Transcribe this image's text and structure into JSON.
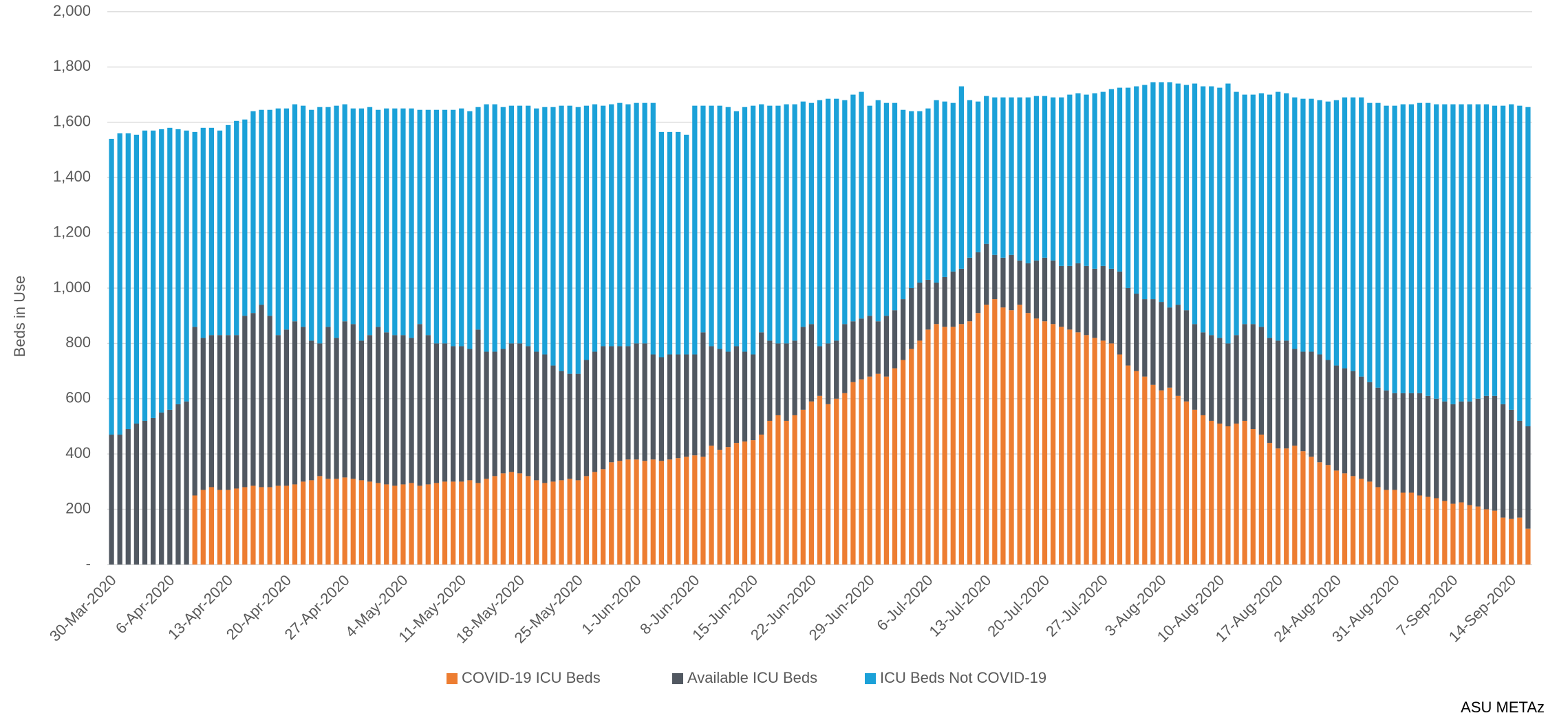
{
  "chart_data": {
    "type": "stacked_bar",
    "y_label": "Beds in Use",
    "source": "ASU METAz",
    "ylim": [
      0,
      2000
    ],
    "yticks": [
      {
        "value": 0,
        "label": "-"
      },
      200,
      400,
      600,
      800,
      {
        "value": 1000,
        "label": "1,000"
      },
      {
        "value": 1200,
        "label": "1,200"
      },
      {
        "value": 1400,
        "label": "1,400"
      },
      {
        "value": 1600,
        "label": "1,600"
      },
      {
        "value": 1800,
        "label": "1,800"
      },
      {
        "value": 2000,
        "label": "2,000"
      }
    ],
    "grid": true,
    "legend": "bottom",
    "categories": [
      "30-Mar-2020",
      null,
      null,
      null,
      null,
      null,
      null,
      "6-Apr-2020",
      null,
      null,
      null,
      null,
      null,
      null,
      "13-Apr-2020",
      null,
      null,
      null,
      null,
      null,
      null,
      "20-Apr-2020",
      null,
      null,
      null,
      null,
      null,
      null,
      "27-Apr-2020",
      null,
      null,
      null,
      null,
      null,
      null,
      "4-May-2020",
      null,
      null,
      null,
      null,
      null,
      null,
      "11-May-2020",
      null,
      null,
      null,
      null,
      null,
      null,
      "18-May-2020",
      null,
      null,
      null,
      null,
      null,
      null,
      "25-May-2020",
      null,
      null,
      null,
      null,
      null,
      null,
      "1-Jun-2020",
      null,
      null,
      null,
      null,
      null,
      null,
      "8-Jun-2020",
      null,
      null,
      null,
      null,
      null,
      null,
      "15-Jun-2020",
      null,
      null,
      null,
      null,
      null,
      null,
      "22-Jun-2020",
      null,
      null,
      null,
      null,
      null,
      null,
      "29-Jun-2020",
      null,
      null,
      null,
      null,
      null,
      null,
      "6-Jul-2020",
      null,
      null,
      null,
      null,
      null,
      null,
      "13-Jul-2020",
      null,
      null,
      null,
      null,
      null,
      null,
      "20-Jul-2020",
      null,
      null,
      null,
      null,
      null,
      null,
      "27-Jul-2020",
      null,
      null,
      null,
      null,
      null,
      null,
      "3-Aug-2020",
      null,
      null,
      null,
      null,
      null,
      null,
      "10-Aug-2020",
      null,
      null,
      null,
      null,
      null,
      null,
      "17-Aug-2020",
      null,
      null,
      null,
      null,
      null,
      null,
      "24-Aug-2020",
      null,
      null,
      null,
      null,
      null,
      null,
      "31-Aug-2020",
      null,
      null,
      null,
      null,
      null,
      null,
      "7-Sep-2020",
      null,
      null,
      null,
      null,
      null,
      null,
      "14-Sep-2020",
      null,
      null
    ],
    "series": [
      {
        "name": "COVID-19 ICU Beds",
        "color": "#ED7D31",
        "values": [
          null,
          null,
          null,
          null,
          null,
          null,
          null,
          null,
          null,
          null,
          250,
          270,
          280,
          270,
          270,
          275,
          280,
          285,
          280,
          280,
          285,
          285,
          290,
          300,
          305,
          320,
          310,
          310,
          315,
          310,
          305,
          300,
          295,
          290,
          285,
          290,
          295,
          285,
          290,
          295,
          300,
          300,
          300,
          305,
          295,
          310,
          320,
          330,
          335,
          330,
          320,
          305,
          295,
          300,
          305,
          310,
          305,
          320,
          335,
          345,
          370,
          375,
          380,
          380,
          375,
          380,
          375,
          380,
          385,
          390,
          395,
          390,
          430,
          415,
          425,
          440,
          445,
          450,
          470,
          520,
          540,
          520,
          540,
          560,
          590,
          610,
          580,
          600,
          620,
          660,
          670,
          680,
          690,
          680,
          710,
          740,
          780,
          810,
          850,
          870,
          860,
          860,
          870,
          880,
          910,
          940,
          960,
          930,
          920,
          940,
          910,
          890,
          880,
          870,
          860,
          850,
          840,
          830,
          820,
          810,
          800,
          760,
          720,
          700,
          680,
          650,
          630,
          640,
          610,
          590,
          560,
          540,
          520,
          510,
          500,
          510,
          520,
          490,
          470,
          440,
          420,
          420,
          430,
          410,
          390,
          370,
          360,
          340,
          330,
          320,
          310,
          300,
          280,
          270,
          270,
          260,
          260,
          250,
          245,
          240,
          230,
          220,
          225,
          215,
          210,
          200,
          195,
          170,
          165,
          170,
          130
        ]
      },
      {
        "name": "Available ICU Beds",
        "color": "#515861",
        "values": [
          470,
          470,
          490,
          510,
          520,
          530,
          550,
          560,
          580,
          590,
          610,
          550,
          550,
          560,
          560,
          555,
          620,
          625,
          660,
          620,
          545,
          565,
          590,
          560,
          505,
          480,
          550,
          510,
          565,
          560,
          505,
          530,
          565,
          550,
          545,
          540,
          525,
          585,
          540,
          505,
          500,
          490,
          490,
          475,
          555,
          460,
          450,
          450,
          465,
          470,
          470,
          465,
          465,
          420,
          395,
          380,
          385,
          420,
          435,
          445,
          420,
          415,
          410,
          420,
          425,
          380,
          375,
          380,
          375,
          370,
          365,
          450,
          360,
          365,
          345,
          350,
          325,
          310,
          370,
          290,
          260,
          280,
          270,
          300,
          280,
          180,
          220,
          210,
          250,
          220,
          220,
          220,
          190,
          220,
          210,
          220,
          220,
          210,
          180,
          150,
          180,
          200,
          200,
          230,
          220,
          220,
          160,
          180,
          200,
          160,
          180,
          210,
          230,
          230,
          220,
          230,
          250,
          250,
          250,
          270,
          270,
          300,
          280,
          280,
          280,
          310,
          320,
          290,
          330,
          330,
          310,
          300,
          310,
          310,
          300,
          320,
          350,
          380,
          390,
          380,
          390,
          390,
          350,
          360,
          380,
          390,
          380,
          380,
          380,
          380,
          370,
          360,
          360,
          360,
          350,
          360,
          360,
          370,
          365,
          360,
          360,
          360,
          365,
          375,
          390,
          410,
          415,
          410,
          395,
          350,
          370
        ]
      },
      {
        "name": "ICU Beds Not COVID-19",
        "color": "#1BA1D8",
        "values": [
          1070,
          1090,
          1070,
          1045,
          1050,
          1040,
          1025,
          1020,
          995,
          980,
          705,
          760,
          750,
          740,
          760,
          775,
          710,
          730,
          705,
          745,
          820,
          800,
          785,
          800,
          835,
          855,
          795,
          840,
          785,
          780,
          840,
          825,
          785,
          810,
          820,
          820,
          830,
          775,
          815,
          845,
          845,
          855,
          860,
          860,
          805,
          895,
          895,
          875,
          860,
          860,
          870,
          880,
          895,
          935,
          960,
          970,
          965,
          920,
          895,
          870,
          875,
          880,
          875,
          870,
          870,
          910,
          815,
          805,
          805,
          795,
          900,
          820,
          870,
          880,
          885,
          850,
          885,
          900,
          825,
          850,
          860,
          865,
          855,
          815,
          800,
          890,
          885,
          875,
          810,
          820,
          820,
          760,
          800,
          770,
          750,
          685,
          640,
          620,
          620,
          660,
          635,
          610,
          660,
          570,
          545,
          535,
          570,
          580,
          570,
          590,
          600,
          595,
          585,
          590,
          610,
          620,
          615,
          620,
          635,
          630,
          650,
          665,
          725,
          750,
          775,
          785,
          795,
          815,
          800,
          815,
          870,
          890,
          900,
          905,
          940,
          880,
          830,
          830,
          845,
          880,
          900,
          895,
          910,
          915,
          915,
          920,
          935,
          960,
          980,
          990,
          1010,
          1010,
          1030,
          1030,
          1040,
          1045,
          1045,
          1050,
          1060,
          1065,
          1075,
          1085,
          1075,
          1075,
          1065,
          1055,
          1050,
          1080,
          1105,
          1140,
          1155
        ]
      }
    ]
  }
}
